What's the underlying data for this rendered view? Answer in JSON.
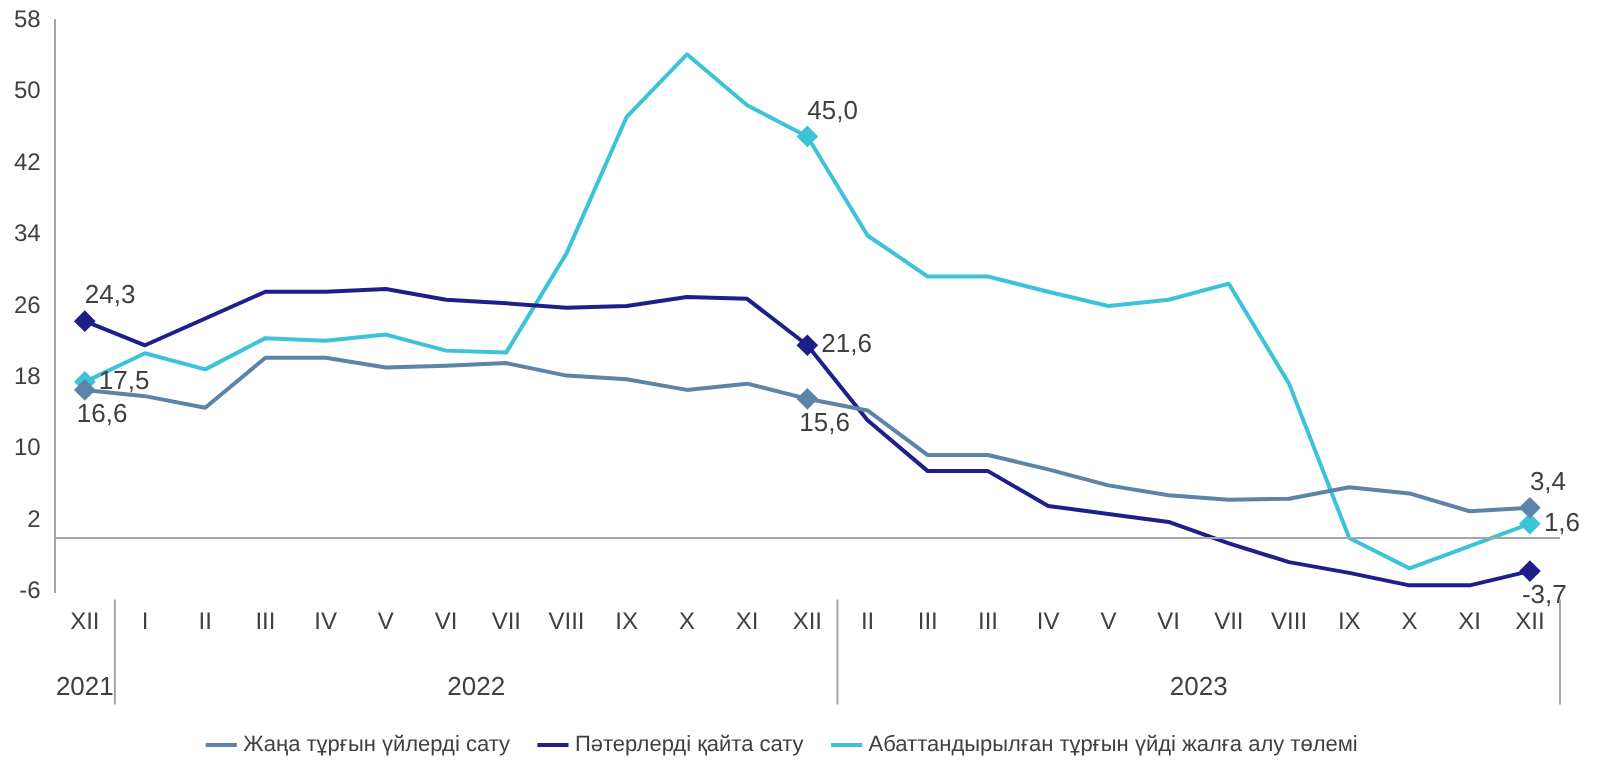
{
  "chart_data": {
    "type": "line",
    "categories": [
      "XII",
      "I",
      "II",
      "III",
      "IV",
      "V",
      "VI",
      "VII",
      "VIII",
      "IX",
      "X",
      "XI",
      "XII",
      "II",
      "III",
      "III",
      "IV",
      "V",
      "VI",
      "VII",
      "VIII",
      "IX",
      "X",
      "XI",
      "XII"
    ],
    "series": [
      {
        "name": "Жаңа тұрғын үйлерді сату",
        "color": "#5b84a8",
        "values": [
          16.6,
          15.9,
          14.6,
          20.2,
          20.2,
          19.1,
          19.3,
          19.6,
          18.2,
          17.8,
          16.6,
          17.3,
          15.6,
          14.3,
          9.3,
          9.3,
          7.7,
          5.9,
          4.8,
          4.3,
          4.4,
          5.7,
          5.0,
          3.0,
          3.4
        ],
        "value_labels": [
          "16,6",
          null,
          null,
          null,
          null,
          null,
          null,
          null,
          null,
          null,
          null,
          null,
          "15,6",
          null,
          null,
          null,
          null,
          null,
          null,
          null,
          null,
          null,
          null,
          null,
          "3,4"
        ]
      },
      {
        "name": "Пәтерлерді қайта сату",
        "color": "#1f1f8c",
        "values": [
          24.3,
          21.6,
          24.6,
          27.6,
          27.6,
          27.9,
          26.7,
          26.3,
          25.8,
          26.0,
          27.0,
          26.8,
          21.6,
          13.2,
          7.5,
          7.5,
          3.6,
          2.7,
          1.8,
          -0.6,
          -2.7,
          -3.9,
          -5.3,
          -5.3,
          -3.7
        ],
        "value_labels": [
          "24,3",
          null,
          null,
          null,
          null,
          null,
          null,
          null,
          null,
          null,
          null,
          null,
          "21,6",
          null,
          null,
          null,
          null,
          null,
          null,
          null,
          null,
          null,
          null,
          null,
          "-3,7"
        ]
      },
      {
        "name": "Абаттандырылған тұрғын үйді жалға алу төлемі",
        "color": "#3cc3d8",
        "values": [
          17.5,
          20.7,
          18.9,
          22.4,
          22.1,
          22.8,
          21.0,
          20.8,
          31.9,
          47.2,
          54.2,
          48.5,
          45.0,
          33.9,
          29.3,
          29.3,
          27.6,
          26.0,
          26.7,
          28.5,
          17.3,
          0.0,
          -3.4,
          -0.9,
          1.6
        ],
        "value_labels": [
          "17,5",
          null,
          null,
          null,
          null,
          null,
          null,
          null,
          null,
          null,
          null,
          null,
          "45,0",
          null,
          null,
          null,
          null,
          null,
          null,
          null,
          null,
          null,
          null,
          null,
          "1,6"
        ]
      }
    ],
    "annotations": [
      "2021",
      "2022",
      "2023"
    ],
    "ylim": [
      -6,
      58
    ],
    "yticks": [
      -6,
      2,
      10,
      18,
      26,
      34,
      42,
      50,
      58
    ],
    "ref_lines": [
      {
        "axis": "y",
        "value": 0,
        "color": "#a6a6a6"
      }
    ],
    "grid": false,
    "legend": "bottom",
    "line_style": "solid"
  }
}
